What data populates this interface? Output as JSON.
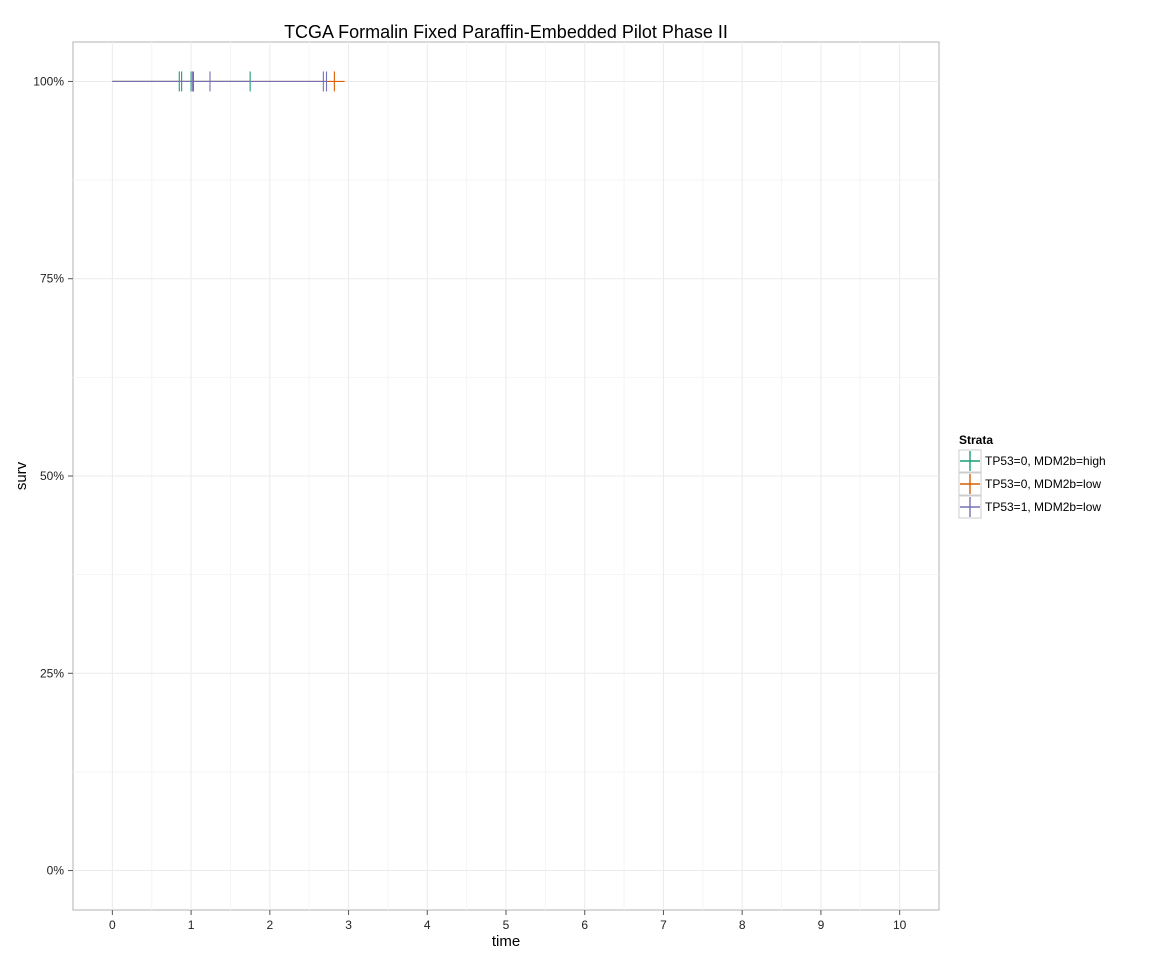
{
  "chart_data": {
    "type": "line",
    "title": "TCGA Formalin Fixed Paraffin-Embedded Pilot Phase II",
    "xlabel": "time",
    "ylabel": "surv",
    "xlim": [
      -0.5,
      10.5
    ],
    "ylim": [
      -0.05,
      1.05
    ],
    "x_ticks": [
      0,
      1,
      2,
      3,
      4,
      5,
      6,
      7,
      8,
      9,
      10
    ],
    "x_tick_labels": [
      "0",
      "1",
      "2",
      "3",
      "4",
      "5",
      "6",
      "7",
      "8",
      "9",
      "10"
    ],
    "y_ticks": [
      0,
      0.25,
      0.5,
      0.75,
      1.0
    ],
    "y_tick_labels": [
      "0%",
      "25%",
      "50%",
      "75%",
      "100%"
    ],
    "grid": true,
    "legend": {
      "title": "Strata",
      "position": "right"
    },
    "series": [
      {
        "name": "TP53=0, MDM2b=high",
        "color": "#1b9e77",
        "steps": [
          [
            0,
            1.0
          ],
          [
            1.75,
            1.0
          ]
        ],
        "censor_times": [
          0.85,
          0.88,
          1.0,
          1.03,
          1.75
        ]
      },
      {
        "name": "TP53=0, MDM2b=low",
        "color": "#d95f02",
        "steps": [
          [
            0,
            1.0
          ],
          [
            2.95,
            1.0
          ]
        ],
        "censor_times": [
          2.82
        ]
      },
      {
        "name": "TP53=1, MDM2b=low",
        "color": "#7570b3",
        "steps": [
          [
            0,
            1.0
          ],
          [
            2.72,
            1.0
          ]
        ],
        "censor_times": [
          1.02,
          1.24,
          2.68,
          2.72
        ]
      }
    ]
  }
}
